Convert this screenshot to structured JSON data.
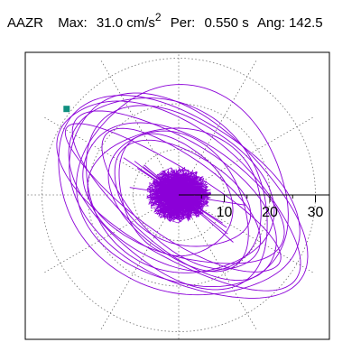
{
  "header": {
    "channel": "AAZR",
    "max_label": "Max:",
    "max_value": "31.0",
    "max_unit": "cm/s",
    "max_unit_exp": "2",
    "per_label": "Per:",
    "per_value": "0.550",
    "per_unit": "s",
    "ang_label": "Ang:",
    "ang_value": "142.5"
  },
  "colors": {
    "trace": "#8b00d8",
    "marker": "#0f8f7f",
    "axis": "#000000",
    "grid": "#707070",
    "frame": "#000000"
  },
  "chart_data": {
    "type": "polar-orbit",
    "title": "AAZR  Max: 31.0 cm/s2  Per: 0.550 s  Ang: 142.5",
    "radial_ticks": [
      10,
      20,
      30
    ],
    "radial_tick_labels": [
      "10",
      "20",
      "30"
    ],
    "grid_rings": [
      10,
      20,
      30
    ],
    "grid_spokes_deg": [
      0,
      30,
      60,
      90,
      120,
      150,
      180,
      210,
      240,
      270,
      300,
      330
    ],
    "max_amplitude": 31.0,
    "max_angle_deg": 142.5,
    "ellipses": [
      {
        "a": 30.5,
        "b": 14.0,
        "tilt": 146
      },
      {
        "a": 28.5,
        "b": 19.0,
        "tilt": 150
      },
      {
        "a": 26.5,
        "b": 11.5,
        "tilt": 143
      },
      {
        "a": 25.0,
        "b": 17.0,
        "tilt": 138
      },
      {
        "a": 23.5,
        "b": 13.0,
        "tilt": 155
      },
      {
        "a": 22.0,
        "b": 16.5,
        "tilt": 148
      },
      {
        "a": 21.0,
        "b": 9.5,
        "tilt": 140
      },
      {
        "a": 19.5,
        "b": 15.0,
        "tilt": 160
      },
      {
        "a": 18.0,
        "b": 12.0,
        "tilt": 135
      },
      {
        "a": 16.0,
        "b": 10.0,
        "tilt": 152
      },
      {
        "a": 27.5,
        "b": 7.5,
        "tilt": 147
      },
      {
        "a": 24.0,
        "b": 21.0,
        "tilt": 145
      },
      {
        "a": 14.5,
        "b": 11.0,
        "tilt": 128
      },
      {
        "a": 29.5,
        "b": 17.5,
        "tilt": 144
      }
    ]
  }
}
